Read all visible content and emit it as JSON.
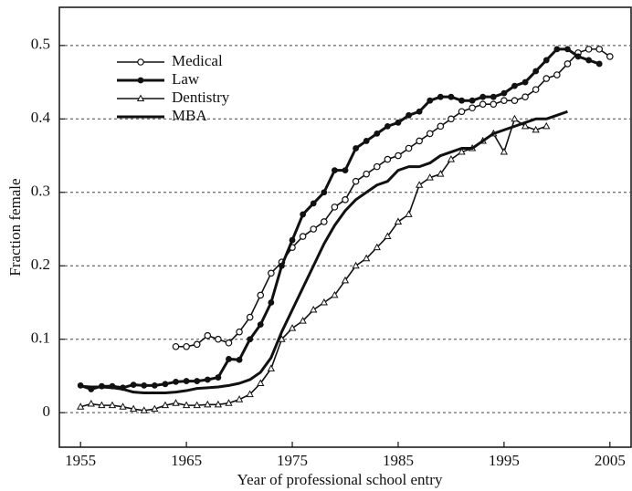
{
  "chart_data": {
    "type": "line",
    "xlabel": "Year of professional school entry",
    "ylabel": "Fraction female",
    "xlim": [
      1953,
      2007
    ],
    "xticks": [
      1955,
      1965,
      1975,
      1985,
      1995,
      2005
    ],
    "ylim": [
      -0.047,
      0.552
    ],
    "yticks": [
      0,
      0.1,
      0.2,
      0.3,
      0.4,
      0.5
    ],
    "grid": true,
    "legend": "upper left",
    "series": [
      {
        "name": "Medical",
        "color": "#111111",
        "marker": "open-circle",
        "x": [
          1964,
          1965,
          1966,
          1967,
          1968,
          1969,
          1970,
          1971,
          1972,
          1973,
          1974,
          1975,
          1976,
          1977,
          1978,
          1979,
          1980,
          1981,
          1982,
          1983,
          1984,
          1985,
          1986,
          1987,
          1988,
          1989,
          1990,
          1991,
          1992,
          1993,
          1994,
          1995,
          1996,
          1997,
          1998,
          1999,
          2000,
          2001,
          2002,
          2003,
          2004,
          2005
        ],
        "values": [
          0.09,
          0.09,
          0.093,
          0.105,
          0.1,
          0.095,
          0.11,
          0.13,
          0.16,
          0.19,
          0.205,
          0.225,
          0.24,
          0.25,
          0.26,
          0.28,
          0.29,
          0.315,
          0.325,
          0.335,
          0.345,
          0.35,
          0.36,
          0.37,
          0.38,
          0.39,
          0.4,
          0.41,
          0.415,
          0.42,
          0.42,
          0.425,
          0.425,
          0.43,
          0.44,
          0.455,
          0.46,
          0.475,
          0.49,
          0.495,
          0.495,
          0.485
        ]
      },
      {
        "name": "Law",
        "color": "#111111",
        "marker": "filled-circle",
        "x": [
          1955,
          1956,
          1957,
          1958,
          1959,
          1960,
          1961,
          1962,
          1963,
          1964,
          1965,
          1966,
          1967,
          1968,
          1969,
          1970,
          1971,
          1972,
          1973,
          1974,
          1975,
          1976,
          1977,
          1978,
          1979,
          1980,
          1981,
          1982,
          1983,
          1984,
          1985,
          1986,
          1987,
          1988,
          1989,
          1990,
          1991,
          1992,
          1993,
          1994,
          1995,
          1996,
          1997,
          1998,
          1999,
          2000,
          2001,
          2002,
          2003,
          2004
        ],
        "values": [
          0.037,
          0.032,
          0.036,
          0.036,
          0.034,
          0.038,
          0.037,
          0.037,
          0.039,
          0.042,
          0.043,
          0.043,
          0.045,
          0.048,
          0.073,
          0.072,
          0.1,
          0.12,
          0.15,
          0.2,
          0.235,
          0.27,
          0.285,
          0.3,
          0.33,
          0.33,
          0.36,
          0.37,
          0.38,
          0.39,
          0.395,
          0.405,
          0.41,
          0.425,
          0.43,
          0.43,
          0.425,
          0.425,
          0.43,
          0.43,
          0.435,
          0.445,
          0.45,
          0.465,
          0.48,
          0.495,
          0.495,
          0.485,
          0.48,
          0.475
        ]
      },
      {
        "name": "Dentistry",
        "color": "#111111",
        "marker": "open-triangle",
        "x": [
          1955,
          1956,
          1957,
          1958,
          1959,
          1960,
          1961,
          1962,
          1963,
          1964,
          1965,
          1966,
          1967,
          1968,
          1969,
          1970,
          1971,
          1972,
          1973,
          1974,
          1975,
          1976,
          1977,
          1978,
          1979,
          1980,
          1981,
          1982,
          1983,
          1984,
          1985,
          1986,
          1987,
          1988,
          1989,
          1990,
          1991,
          1992,
          1993,
          1994,
          1995,
          1996,
          1997,
          1998,
          1999
        ],
        "values": [
          0.008,
          0.012,
          0.01,
          0.01,
          0.008,
          0.005,
          0.003,
          0.005,
          0.01,
          0.013,
          0.01,
          0.01,
          0.011,
          0.011,
          0.013,
          0.018,
          0.025,
          0.04,
          0.06,
          0.1,
          0.115,
          0.125,
          0.14,
          0.15,
          0.16,
          0.18,
          0.2,
          0.21,
          0.225,
          0.24,
          0.26,
          0.27,
          0.31,
          0.32,
          0.325,
          0.345,
          0.355,
          0.36,
          0.37,
          0.38,
          0.355,
          0.4,
          0.39,
          0.385,
          0.39
        ]
      },
      {
        "name": "MBA",
        "color": "#111111",
        "marker": "none",
        "x": [
          1955,
          1956,
          1957,
          1958,
          1959,
          1960,
          1961,
          1962,
          1963,
          1964,
          1965,
          1966,
          1967,
          1968,
          1969,
          1970,
          1971,
          1972,
          1973,
          1974,
          1975,
          1976,
          1977,
          1978,
          1979,
          1980,
          1981,
          1982,
          1983,
          1984,
          1985,
          1986,
          1987,
          1988,
          1989,
          1990,
          1991,
          1992,
          1993,
          1994,
          1995,
          1996,
          1997,
          1998,
          1999,
          2000,
          2001
        ],
        "values": [
          0.036,
          0.035,
          0.035,
          0.034,
          0.032,
          0.028,
          0.027,
          0.027,
          0.027,
          0.028,
          0.03,
          0.033,
          0.034,
          0.035,
          0.037,
          0.04,
          0.045,
          0.055,
          0.075,
          0.11,
          0.14,
          0.17,
          0.2,
          0.23,
          0.255,
          0.275,
          0.29,
          0.3,
          0.31,
          0.315,
          0.33,
          0.335,
          0.335,
          0.34,
          0.35,
          0.355,
          0.36,
          0.36,
          0.37,
          0.38,
          0.385,
          0.39,
          0.395,
          0.4,
          0.4,
          0.405,
          0.41
        ]
      }
    ]
  }
}
